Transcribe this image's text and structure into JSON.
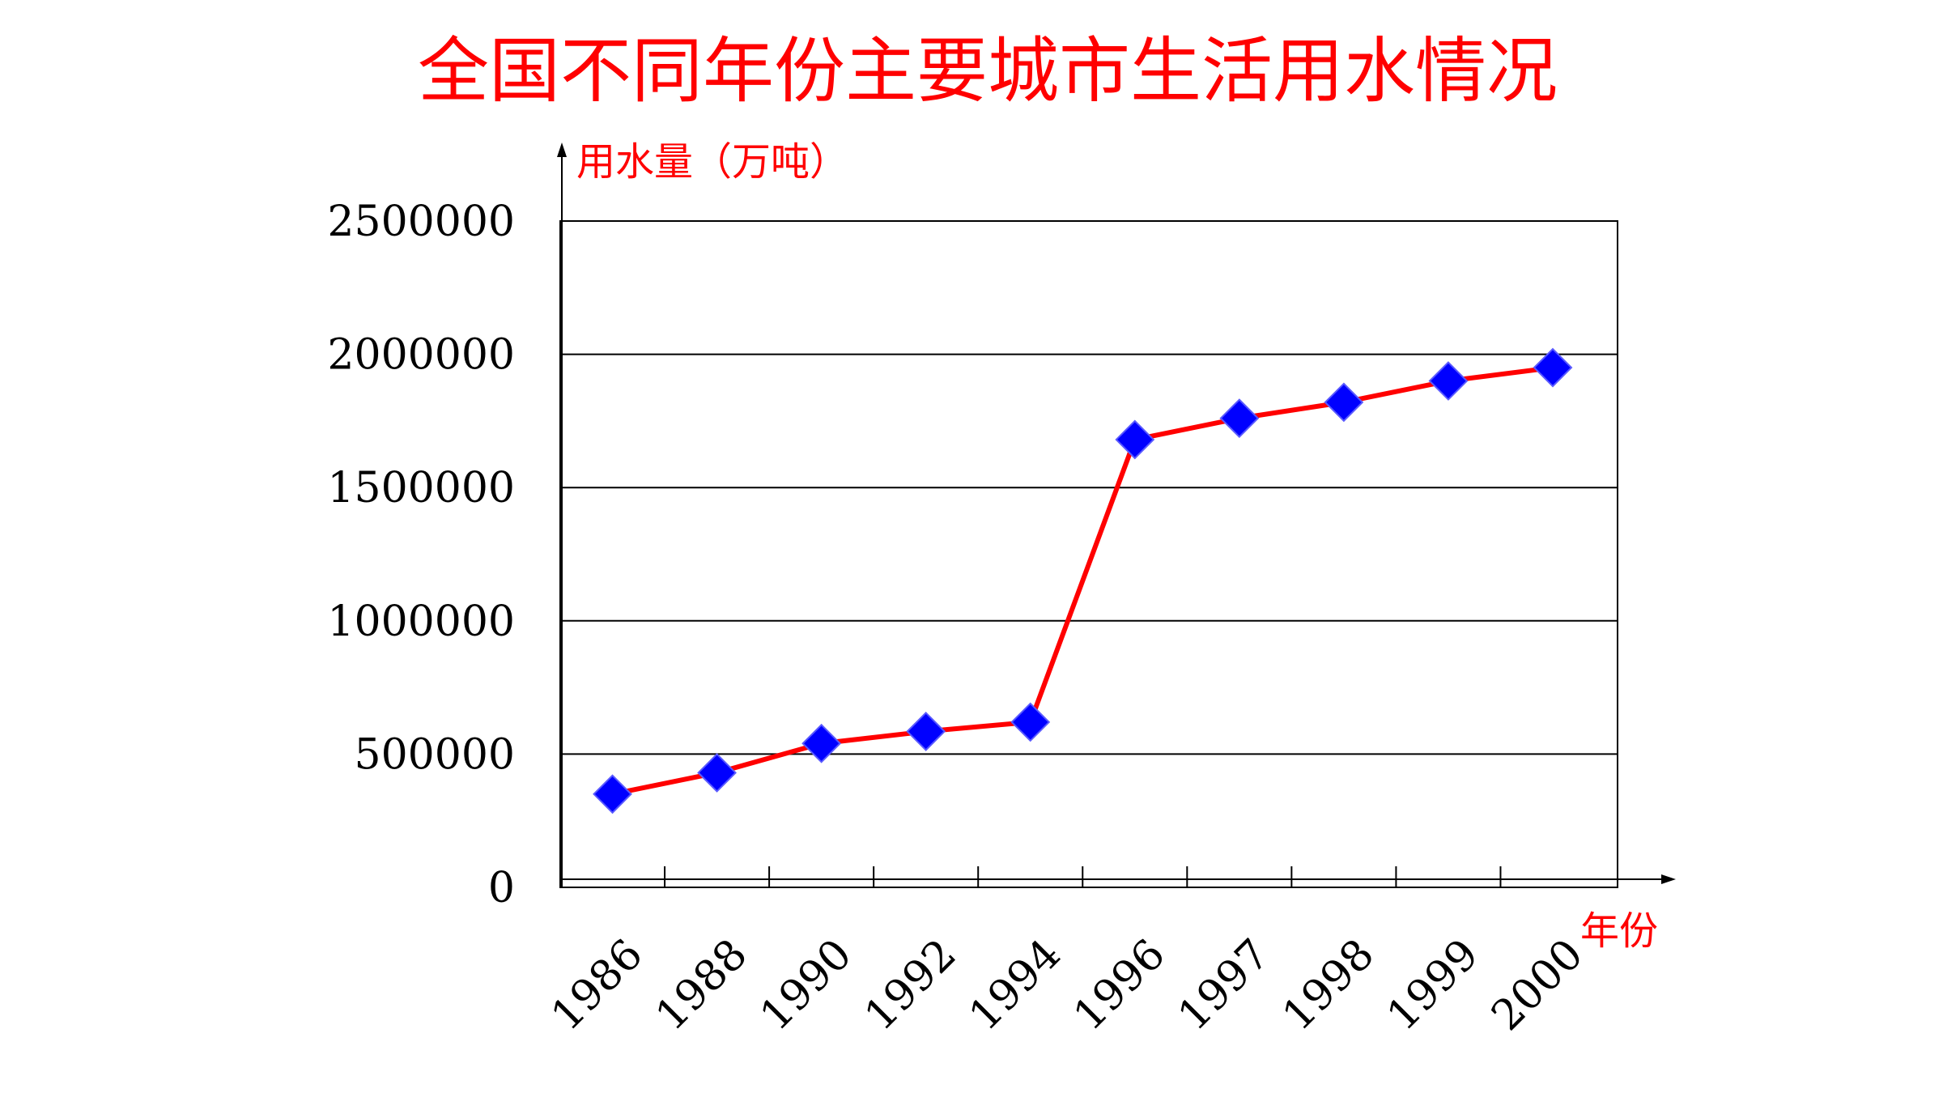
{
  "chart_data": {
    "type": "line",
    "title": "全国不同年份主要城市生活用水情况",
    "ylabel": "用水量（万吨）",
    "xlabel": "年份",
    "categories": [
      "1986",
      "1988",
      "1990",
      "1992",
      "1994",
      "1996",
      "1997",
      "1998",
      "1999",
      "2000"
    ],
    "series": [
      {
        "values": [
          350000,
          430000,
          540000,
          585000,
          620000,
          1680000,
          1760000,
          1820000,
          1900000,
          1950000
        ]
      }
    ],
    "ylim": [
      0,
      2500000
    ],
    "yticks": [
      0,
      500000,
      1000000,
      1500000,
      2000000,
      2500000
    ],
    "ytick_labels": [
      "0",
      "500000",
      "1000000",
      "1500000",
      "2000000",
      "2500000"
    ],
    "grid": true,
    "legend": "none",
    "colors": {
      "title": "#ff0000",
      "axis_labels": "#ff0000",
      "line": "#ff0000",
      "marker": "#0000ff",
      "marker_edge": "#5a5aff",
      "grid": "#000000"
    }
  }
}
